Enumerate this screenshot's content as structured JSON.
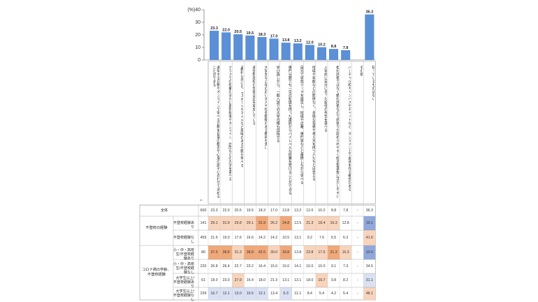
{
  "chart_data": {
    "type": "bar",
    "unit_label": "(%)",
    "yticks": [
      0,
      10,
      20,
      30,
      40
    ],
    "ylim": [
      0,
      40
    ],
    "n_label": "n=",
    "categories": [
      "通学する日数やオンラインで学べる日数を自身の都合や心身の調子に合わせて決めることができる",
      "クラスでの授業のほかに個別指導やオンライン、訪問などの方法を選べる",
      "5教科以外にも、eスポーツやネイルなど興味のある分野が学べる",
      "通信制高校の生徒は近年増加している",
      "大学生など年の近い大人や社会経験のある教員も多い",
      "学び直しから、一般入試での大学合格も目指せる",
      "専門分野でも一定の知識を持った講師からハイレベルな授業を受けることができる",
      "自分で学習テーマを設定し、地域や企業、専門家などと連携しながら学べる",
      "地域や年齢などの関係なく、多様な背景や考え方を持つ人たちと出会える",
      "入学前に自分に合った担任の先生を選べる",
      "相対評価ではなく絶対評価なので頑張りが認められやすく総合型選抜に活かしやすい",
      "バーチャル校キャンパスやチャットなど、オンライン上で友達を作る機会がある",
      "その他",
      "知っているものはない"
    ],
    "values": [
      23.3,
      22.0,
      20.5,
      19.5,
      18.3,
      17.0,
      13.8,
      13.2,
      12.0,
      10.2,
      8.8,
      7.8,
      0,
      36.3
    ],
    "value_labels": [
      "23.3",
      "22.0",
      "20.5",
      "19.5",
      "18.3",
      "17.0",
      "13.8",
      "13.2",
      "12.0",
      "10.2",
      "8.8",
      "7.8",
      "",
      "36.3"
    ],
    "bar_color": "#5b8fd6",
    "highlight_bar_color": "#5b8fd6",
    "rows": [
      {
        "group": "",
        "label": "全体",
        "n": "600",
        "values": [
          "23.3",
          "22.0",
          "20.5",
          "19.5",
          "18.3",
          "17.0",
          "13.8",
          "13.2",
          "12.0",
          "10.2",
          "8.8",
          "7.8",
          "-",
          "36.3"
        ],
        "colors": []
      },
      {
        "group": "不登校の経験",
        "label": "不登校経験あり",
        "n": "141",
        "values": [
          "29.1",
          "31.9",
          "29.8",
          "29.1",
          "31.9",
          "26.2",
          "24.8",
          "13.5",
          "21.3",
          "18.4",
          "16.3",
          "12.8",
          "-",
          "19.1"
        ],
        "colors": [
          "o1",
          "o1",
          "o1",
          "o1",
          "o2",
          "o1",
          "o2",
          "",
          "o1",
          "o1",
          "o1",
          "",
          "",
          "b2"
        ]
      },
      {
        "group": "",
        "label": "不登校経験なし",
        "n": "459",
        "values": [
          "21.6",
          "19.0",
          "17.6",
          "16.6",
          "14.2",
          "14.2",
          "10.5",
          "13.1",
          "9.2",
          "7.6",
          "6.5",
          "6.3",
          "-",
          "41.6"
        ],
        "colors": [
          "",
          "",
          "",
          "",
          "",
          "",
          "",
          "",
          "",
          "",
          "",
          "",
          "",
          "o1"
        ]
      },
      {
        "group": "コロナ禍の学齢、不登校経験",
        "label": "小・中・高校生/不登校経験あり",
        "n": "80",
        "values": [
          "37.5",
          "38.8",
          "31.3",
          "38.8",
          "42.5",
          "30.0",
          "33.8",
          "13.8",
          "23.8",
          "17.5",
          "21.3",
          "16.3",
          "-",
          "10.0"
        ],
        "colors": [
          "o2",
          "o2",
          "o1",
          "o2",
          "o2",
          "o1",
          "o2",
          "",
          "o1",
          "o1",
          "o2",
          "o1",
          "",
          "b2"
        ]
      },
      {
        "group": "",
        "label": "小・中・高校生/不登校経験なし",
        "n": "220",
        "values": [
          "26.8",
          "26.4",
          "22.7",
          "23.2",
          "16.4",
          "15.0",
          "15.0",
          "14.1",
          "10.0",
          "10.0",
          "9.1",
          "7.3",
          "-",
          "34.5"
        ],
        "colors": []
      },
      {
        "group": "",
        "label": "大学生以上/不登校経験あり",
        "n": "61",
        "values": [
          "18.0",
          "23.0",
          "27.9",
          "16.4",
          "18.0",
          "21.3",
          "13.1",
          "13.1",
          "18.0",
          "19.7",
          "9.8",
          "8.2",
          "-",
          "31.1"
        ],
        "colors": [
          "",
          "",
          "o1",
          "",
          "",
          "",
          "",
          "",
          "",
          "o1",
          "",
          "",
          "",
          "b1"
        ]
      },
      {
        "group": "",
        "label": "大学生以上/不登校経験なし",
        "n": "239",
        "values": [
          "16.7",
          "12.1",
          "13.0",
          "10.5",
          "12.1",
          "13.4",
          "6.3",
          "12.1",
          "8.4",
          "5.4",
          "4.2",
          "5.4",
          "-",
          "48.1"
        ],
        "colors": [
          "b1",
          "b1",
          "b1",
          "b1",
          "b1",
          "",
          "b1",
          "",
          "",
          "",
          "",
          "",
          "",
          "o1"
        ]
      }
    ],
    "palette": {
      "o1": "#f8d4bd",
      "o2": "#f0a878",
      "b1": "#d9e1f3",
      "b2": "#90a8dc"
    }
  }
}
